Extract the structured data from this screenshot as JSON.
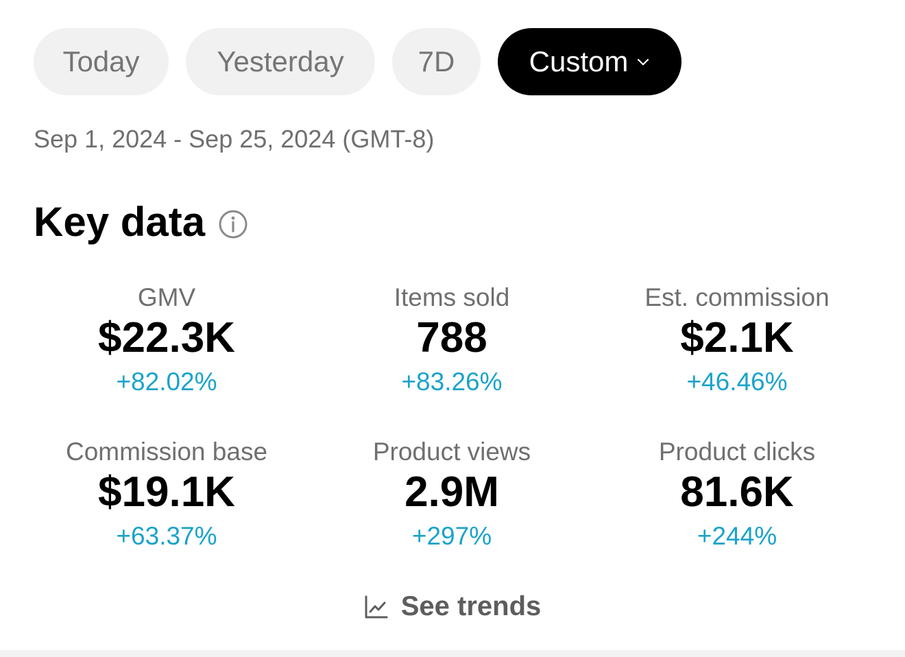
{
  "filters": {
    "today": "Today",
    "yesterday": "Yesterday",
    "seven_days": "7D",
    "custom": "Custom"
  },
  "date_range": "Sep 1, 2024 - Sep 25, 2024 (GMT-8)",
  "key_data": {
    "title": "Key data",
    "metrics": [
      {
        "label": "GMV",
        "value": "$22.3K",
        "change": "+82.02%"
      },
      {
        "label": "Items sold",
        "value": "788",
        "change": "+83.26%"
      },
      {
        "label": "Est. commission",
        "value": "$2.1K",
        "change": "+46.46%"
      },
      {
        "label": "Commission base",
        "value": "$19.1K",
        "change": "+63.37%"
      },
      {
        "label": "Product views",
        "value": "2.9M",
        "change": "+297%"
      },
      {
        "label": "Product clicks",
        "value": "81.6K",
        "change": "+244%"
      }
    ]
  },
  "see_trends": "See trends",
  "colors": {
    "accent_change": "#1aa3c9",
    "pill_active_bg": "#000000",
    "pill_inactive_bg": "#f1f1f1"
  },
  "icons": {
    "caret": "chevron-down-icon",
    "info": "info-icon",
    "trend": "line-chart-icon"
  }
}
